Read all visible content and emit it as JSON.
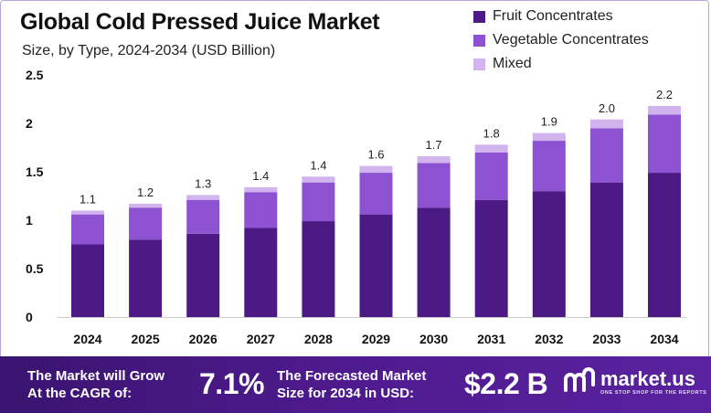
{
  "title": "Global Cold Pressed Juice Market",
  "subtitle": "Size, by Type, 2024-2034 (USD Billion)",
  "colors": {
    "fruit": "#4b1a84",
    "vegetable": "#8c52d1",
    "mixed": "#d1b3ee",
    "footer": "#4d1a8c"
  },
  "chart_data": {
    "type": "bar",
    "stacked": true,
    "title": "Global Cold Pressed Juice Market",
    "subtitle": "Size, by Type, 2024-2034 (USD Billion)",
    "categories": [
      "2024",
      "2025",
      "2026",
      "2027",
      "2028",
      "2029",
      "2030",
      "2031",
      "2032",
      "2033",
      "2034"
    ],
    "series": [
      {
        "name": "Fruit Concentrates",
        "color": "#4b1a84",
        "values": [
          0.75,
          0.8,
          0.86,
          0.92,
          0.99,
          1.06,
          1.13,
          1.21,
          1.3,
          1.39,
          1.49
        ]
      },
      {
        "name": "Vegetable Concentrates",
        "color": "#8c52d1",
        "values": [
          0.31,
          0.33,
          0.35,
          0.37,
          0.4,
          0.43,
          0.46,
          0.49,
          0.52,
          0.56,
          0.6
        ]
      },
      {
        "name": "Mixed",
        "color": "#d1b3ee",
        "values": [
          0.04,
          0.04,
          0.05,
          0.05,
          0.06,
          0.07,
          0.07,
          0.08,
          0.08,
          0.09,
          0.09
        ]
      }
    ],
    "totals": [
      "1.1",
      "1.2",
      "1.3",
      "1.4",
      "1.4",
      "1.6",
      "1.7",
      "1.8",
      "1.9",
      "2.0",
      "2.2"
    ],
    "yticks": [
      "0",
      "0.5",
      "1",
      "1.5",
      "2",
      "2.5"
    ],
    "ylim": [
      0,
      2.5
    ],
    "xlabel": "",
    "ylabel": "",
    "legend_position": "top-right",
    "grid": false
  },
  "footer": {
    "cagr_label_line1": "The Market will Grow",
    "cagr_label_line2": "At the CAGR of:",
    "cagr_value": "7.1%",
    "forecast_label_line1": "The Forecasted Market",
    "forecast_label_line2": "Size for 2034 in USD:",
    "forecast_value": "$2.2 B",
    "brand_name": "market.us",
    "brand_tagline": "ONE STOP SHOP FOR THE REPORTS"
  }
}
